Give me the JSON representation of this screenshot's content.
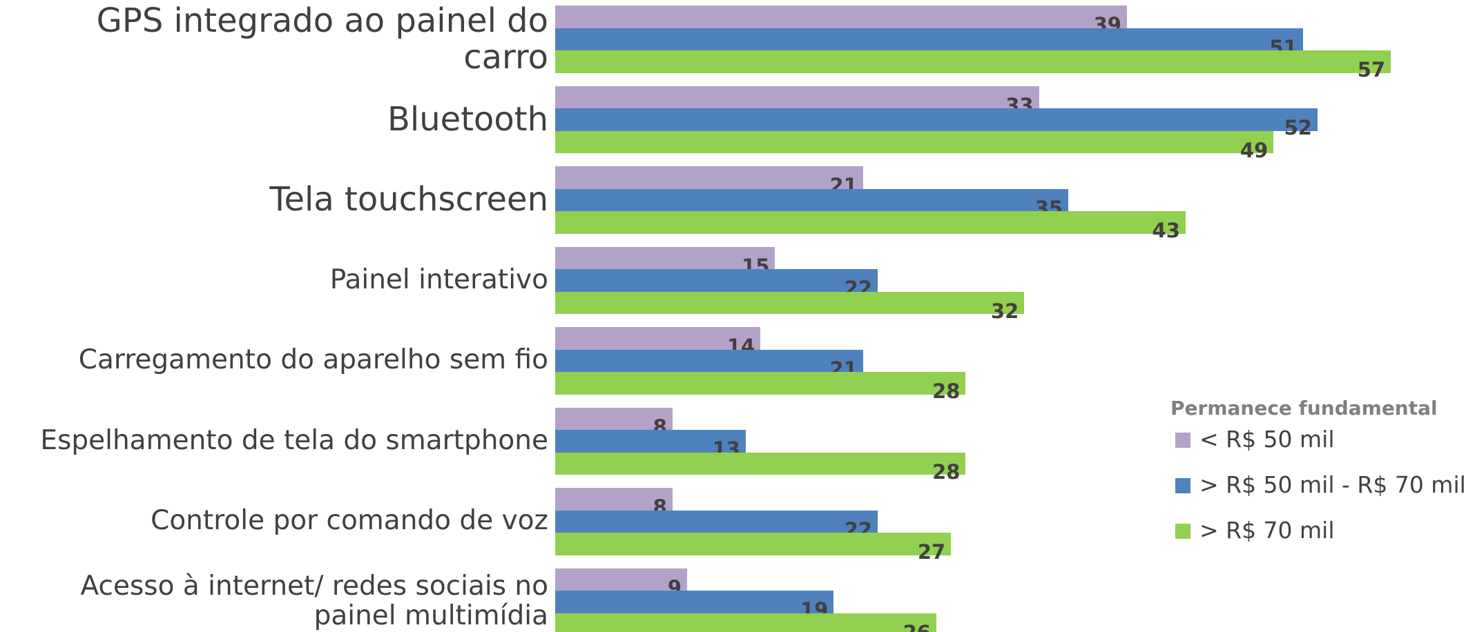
{
  "chart_data": {
    "type": "barh",
    "categories": [
      "GPS integrado ao painel do carro",
      "Bluetooth",
      "Tela touchscreen",
      "Painel interativo",
      "Carregamento do aparelho sem fio",
      "Espelhamento de tela do smartphone",
      "Controle por comando de voz",
      "Acesso à internet/ redes sociais no painel multimídia"
    ],
    "legend_title": "Permanece fundamental",
    "series": [
      {
        "name": "< R$ 50 mil",
        "color": "#b3a2c7",
        "values": [
          39,
          33,
          21,
          15,
          14,
          8,
          8,
          9
        ]
      },
      {
        "name": "> R$ 50 mil - R$ 70 mil",
        "color": "#4f81bd",
        "values": [
          51,
          52,
          35,
          22,
          21,
          13,
          22,
          19
        ]
      },
      {
        "name": "> R$ 70 mil",
        "color": "#92d050",
        "values": [
          57,
          49,
          43,
          32,
          28,
          28,
          27,
          26
        ]
      }
    ]
  }
}
